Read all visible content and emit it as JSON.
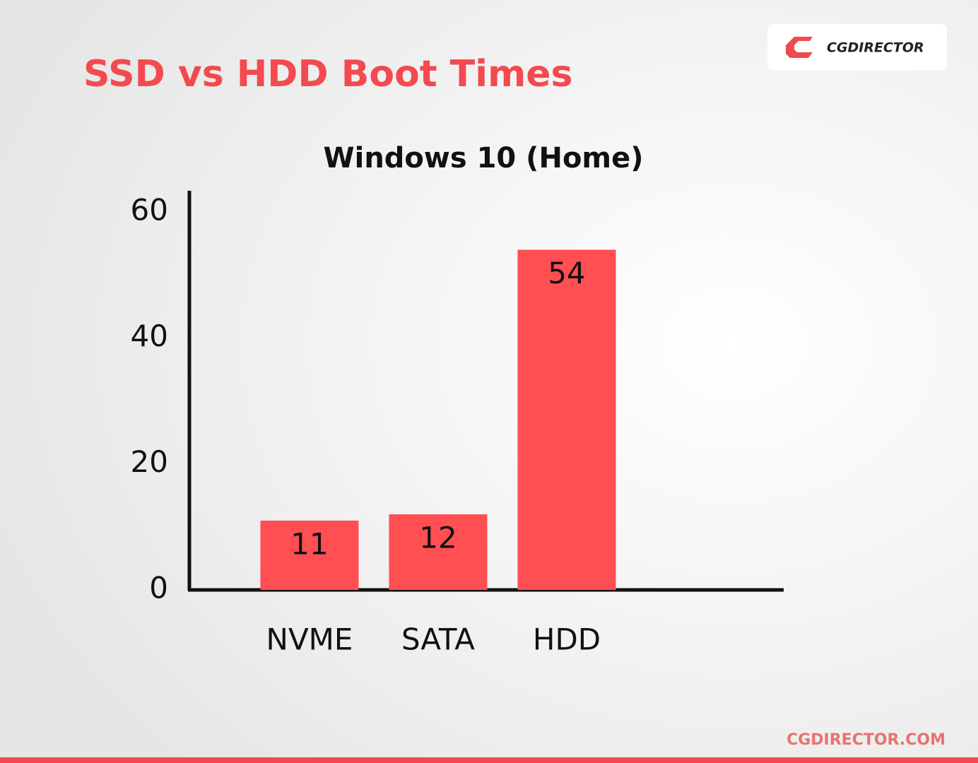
{
  "chart_data": {
    "type": "bar",
    "title": "SSD vs HDD Boot Times",
    "subtitle": "Windows 10 (Home)",
    "categories": [
      "NVME",
      "SATA",
      "HDD"
    ],
    "values": [
      11,
      12,
      54
    ],
    "color": "#ff4f52",
    "ylim": [
      0,
      60
    ],
    "yticks": [
      0,
      20,
      40,
      60
    ],
    "grid": false
  },
  "logo": "CGDIRECTOR",
  "footer": "CGDIRECTOR.COM"
}
